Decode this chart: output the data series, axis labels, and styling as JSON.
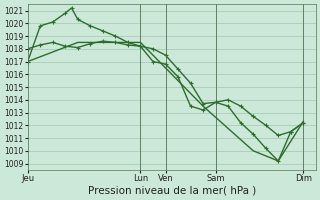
{
  "background_color": "#cce8d8",
  "grid_color": "#aaccb8",
  "line_color": "#2d6e2d",
  "xlabel": "Pression niveau de la mer( hPa )",
  "xlabel_fontsize": 7.5,
  "ylim": [
    1008.5,
    1021.5
  ],
  "yticks": [
    1009,
    1010,
    1011,
    1012,
    1013,
    1014,
    1015,
    1016,
    1017,
    1018,
    1019,
    1020,
    1021
  ],
  "ytick_fontsize": 5.5,
  "xtick_labels": [
    "Jeu",
    "Lun",
    "Ven",
    "Sam",
    "Dim"
  ],
  "xtick_pos": [
    0,
    9,
    11,
    15,
    22
  ],
  "xlim": [
    0,
    23
  ],
  "vlines": [
    9,
    11,
    15,
    22
  ],
  "line1_x": [
    0,
    1,
    2,
    3,
    3.5,
    4,
    5,
    6,
    7,
    8,
    9,
    10,
    11,
    12,
    13,
    14,
    15,
    16,
    17,
    18,
    19,
    20,
    21,
    22
  ],
  "line1_y": [
    1017.0,
    1019.8,
    1020.1,
    1020.8,
    1021.2,
    1020.3,
    1019.8,
    1019.4,
    1019.0,
    1018.5,
    1018.2,
    1017.0,
    1016.8,
    1015.8,
    1013.5,
    1013.2,
    1013.8,
    1013.5,
    1012.2,
    1011.3,
    1010.2,
    1009.2,
    1011.5,
    1012.2
  ],
  "line2_x": [
    0,
    1,
    2,
    3,
    4,
    5,
    6,
    7,
    8,
    9,
    10,
    11,
    12,
    13,
    14,
    15,
    16,
    17,
    18,
    19,
    20,
    21,
    22
  ],
  "line2_y": [
    1018.0,
    1018.3,
    1018.5,
    1018.2,
    1018.1,
    1018.4,
    1018.6,
    1018.5,
    1018.3,
    1018.2,
    1018.0,
    1017.5,
    1016.4,
    1015.3,
    1013.7,
    1013.8,
    1014.0,
    1013.5,
    1012.7,
    1012.0,
    1011.2,
    1011.5,
    1012.2
  ],
  "line3_x": [
    0,
    4,
    9,
    14,
    18,
    20,
    22
  ],
  "line3_y": [
    1017.0,
    1018.5,
    1018.5,
    1013.5,
    1010.0,
    1009.2,
    1012.3
  ],
  "marker_size": 3,
  "linewidth": 1.0
}
